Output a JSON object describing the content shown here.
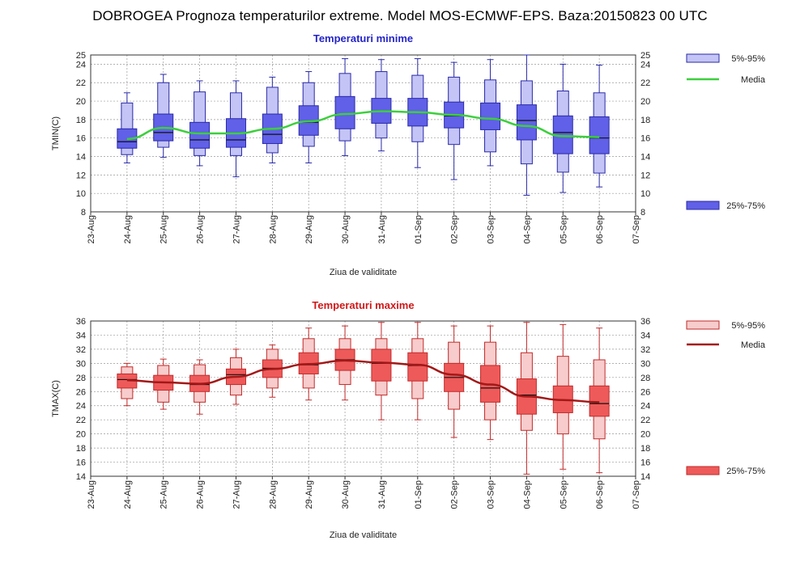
{
  "title": "DOBROGEA  Prognoza temperaturilor extreme.  Model MOS-ECMWF-EPS. Baza:20150823 00 UTC",
  "chart_data": [
    {
      "type": "box",
      "title": "Temperaturi minime",
      "title_color": "#2424c8",
      "ylabel": "TMIN(C)",
      "xlabel": "Ziua de validitate",
      "ylim": [
        8,
        25
      ],
      "yticks": [
        8,
        10,
        12,
        14,
        16,
        18,
        20,
        22,
        24,
        25
      ],
      "x_ticks": [
        "23-Aug",
        "24-Aug",
        "25-Aug",
        "26-Aug",
        "27-Aug",
        "28-Aug",
        "29-Aug",
        "30-Aug",
        "31-Aug",
        "01-Sep",
        "02-Sep",
        "03-Sep",
        "04-Sep",
        "05-Sep",
        "06-Sep",
        "07-Sep"
      ],
      "grid": true,
      "legend": {
        "range_outer": "5%-95%",
        "mean": "Media",
        "range_inner": "25%-75%",
        "placement": "right"
      },
      "colors": {
        "inner": "#6060e8",
        "outer": "#c4c4f6",
        "stroke": "#2a2aa8",
        "mean": "#3ccf3c"
      },
      "series": [
        {
          "x": "24-Aug",
          "min": 13.3,
          "p5": 14.2,
          "p25": 14.9,
          "median": 15.6,
          "p75": 17.0,
          "p95": 19.8,
          "max": 20.9,
          "mean": 15.9
        },
        {
          "x": "25-Aug",
          "min": 13.9,
          "p5": 15.0,
          "p25": 15.7,
          "median": 16.6,
          "p75": 18.6,
          "p95": 22.0,
          "max": 22.9,
          "mean": 17.1
        },
        {
          "x": "26-Aug",
          "min": 13.0,
          "p5": 14.1,
          "p25": 14.9,
          "median": 15.8,
          "p75": 17.7,
          "p95": 21.0,
          "max": 22.2,
          "mean": 16.5
        },
        {
          "x": "27-Aug",
          "min": 11.8,
          "p5": 14.1,
          "p25": 15.0,
          "median": 15.8,
          "p75": 18.1,
          "p95": 20.9,
          "max": 22.2,
          "mean": 16.5
        },
        {
          "x": "28-Aug",
          "min": 13.3,
          "p5": 14.4,
          "p25": 15.4,
          "median": 16.4,
          "p75": 18.6,
          "p95": 21.5,
          "max": 22.6,
          "mean": 17.0
        },
        {
          "x": "29-Aug",
          "min": 13.3,
          "p5": 15.1,
          "p25": 16.3,
          "median": 17.7,
          "p75": 19.5,
          "p95": 22.0,
          "max": 23.2,
          "mean": 17.8
        },
        {
          "x": "30-Aug",
          "min": 14.1,
          "p5": 15.7,
          "p25": 17.0,
          "median": 18.6,
          "p75": 20.5,
          "p95": 23.0,
          "max": 24.6,
          "mean": 18.6
        },
        {
          "x": "31-Aug",
          "min": 14.6,
          "p5": 16.0,
          "p25": 17.6,
          "median": 18.9,
          "p75": 20.3,
          "p95": 23.2,
          "max": 24.5,
          "mean": 18.9
        },
        {
          "x": "01-Sep",
          "min": 12.8,
          "p5": 15.6,
          "p25": 17.3,
          "median": 18.8,
          "p75": 20.3,
          "p95": 22.8,
          "max": 24.6,
          "mean": 18.8
        },
        {
          "x": "02-Sep",
          "min": 11.5,
          "p5": 15.3,
          "p25": 17.1,
          "median": 18.4,
          "p75": 19.9,
          "p95": 22.6,
          "max": 24.2,
          "mean": 18.5
        },
        {
          "x": "03-Sep",
          "min": 13.0,
          "p5": 14.5,
          "p25": 16.9,
          "median": 18.1,
          "p75": 19.8,
          "p95": 22.3,
          "max": 24.5,
          "mean": 18.1
        },
        {
          "x": "04-Sep",
          "min": 9.8,
          "p5": 13.2,
          "p25": 15.8,
          "median": 17.9,
          "p75": 19.6,
          "p95": 22.2,
          "max": 25.0,
          "mean": 17.3
        },
        {
          "x": "05-Sep",
          "min": 10.1,
          "p5": 12.3,
          "p25": 14.3,
          "median": 16.6,
          "p75": 18.4,
          "p95": 21.1,
          "max": 24.0,
          "mean": 16.2
        },
        {
          "x": "06-Sep",
          "min": 10.7,
          "p5": 12.2,
          "p25": 14.3,
          "median": 16.0,
          "p75": 18.3,
          "p95": 20.9,
          "max": 23.9,
          "mean": 16.1
        }
      ]
    },
    {
      "type": "box",
      "title": "Temperaturi maxime",
      "title_color": "#d01818",
      "ylabel": "TMAX(C)",
      "xlabel": "Ziua de validitate",
      "ylim": [
        14,
        36
      ],
      "yticks": [
        14,
        16,
        18,
        20,
        22,
        24,
        26,
        28,
        30,
        32,
        34,
        36
      ],
      "x_ticks": [
        "23-Aug",
        "24-Aug",
        "25-Aug",
        "26-Aug",
        "27-Aug",
        "28-Aug",
        "29-Aug",
        "30-Aug",
        "31-Aug",
        "01-Sep",
        "02-Sep",
        "03-Sep",
        "04-Sep",
        "05-Sep",
        "06-Sep",
        "07-Sep"
      ],
      "grid": true,
      "legend": {
        "range_outer": "5%-95%",
        "mean": "Media",
        "range_inner": "25%-75%",
        "placement": "right"
      },
      "colors": {
        "inner": "#ee5a5a",
        "outer": "#f8cccc",
        "stroke": "#c22a2a",
        "mean": "#a31818"
      },
      "series": [
        {
          "x": "24-Aug",
          "min": 24.0,
          "p5": 25.0,
          "p25": 26.5,
          "median": 27.7,
          "p75": 28.5,
          "p95": 29.5,
          "max": 30.0,
          "mean": 27.6
        },
        {
          "x": "25-Aug",
          "min": 23.5,
          "p5": 24.5,
          "p25": 26.2,
          "median": 27.3,
          "p75": 28.3,
          "p95": 29.7,
          "max": 30.6,
          "mean": 27.3
        },
        {
          "x": "26-Aug",
          "min": 22.8,
          "p5": 24.5,
          "p25": 26.0,
          "median": 27.0,
          "p75": 28.3,
          "p95": 29.8,
          "max": 30.5,
          "mean": 27.1
        },
        {
          "x": "27-Aug",
          "min": 24.2,
          "p5": 25.5,
          "p25": 27.0,
          "median": 28.4,
          "p75": 29.2,
          "p95": 30.8,
          "max": 32.0,
          "mean": 28.1
        },
        {
          "x": "28-Aug",
          "min": 25.2,
          "p5": 26.5,
          "p25": 28.0,
          "median": 29.3,
          "p75": 30.5,
          "p95": 32.0,
          "max": 32.6,
          "mean": 29.2
        },
        {
          "x": "29-Aug",
          "min": 24.8,
          "p5": 26.5,
          "p25": 28.5,
          "median": 29.8,
          "p75": 31.5,
          "p95": 33.5,
          "max": 35.0,
          "mean": 29.9
        },
        {
          "x": "30-Aug",
          "min": 24.8,
          "p5": 27.0,
          "p25": 29.0,
          "median": 30.5,
          "p75": 32.0,
          "p95": 33.5,
          "max": 35.3,
          "mean": 30.4
        },
        {
          "x": "31-Aug",
          "min": 22.0,
          "p5": 25.5,
          "p25": 27.5,
          "median": 30.0,
          "p75": 32.0,
          "p95": 33.5,
          "max": 35.8,
          "mean": 30.1
        },
        {
          "x": "01-Sep",
          "min": 22.0,
          "p5": 25.0,
          "p25": 27.5,
          "median": 29.7,
          "p75": 31.5,
          "p95": 33.5,
          "max": 35.8,
          "mean": 29.8
        },
        {
          "x": "02-Sep",
          "min": 19.5,
          "p5": 23.5,
          "p25": 26.0,
          "median": 28.0,
          "p75": 30.0,
          "p95": 33.0,
          "max": 35.3,
          "mean": 28.4
        },
        {
          "x": "03-Sep",
          "min": 19.2,
          "p5": 22.0,
          "p25": 24.5,
          "median": 26.5,
          "p75": 29.7,
          "p95": 33.0,
          "max": 35.3,
          "mean": 27.0
        },
        {
          "x": "04-Sep",
          "min": 14.3,
          "p5": 20.5,
          "p25": 22.8,
          "median": 25.5,
          "p75": 27.8,
          "p95": 31.5,
          "max": 35.8,
          "mean": 25.3
        },
        {
          "x": "05-Sep",
          "min": 15.0,
          "p5": 20.0,
          "p25": 23.0,
          "median": 24.8,
          "p75": 26.8,
          "p95": 31.0,
          "max": 35.5,
          "mean": 24.8
        },
        {
          "x": "06-Sep",
          "min": 14.5,
          "p5": 19.3,
          "p25": 22.5,
          "median": 24.3,
          "p75": 26.8,
          "p95": 30.5,
          "max": 35.0,
          "mean": 24.5
        }
      ]
    }
  ]
}
